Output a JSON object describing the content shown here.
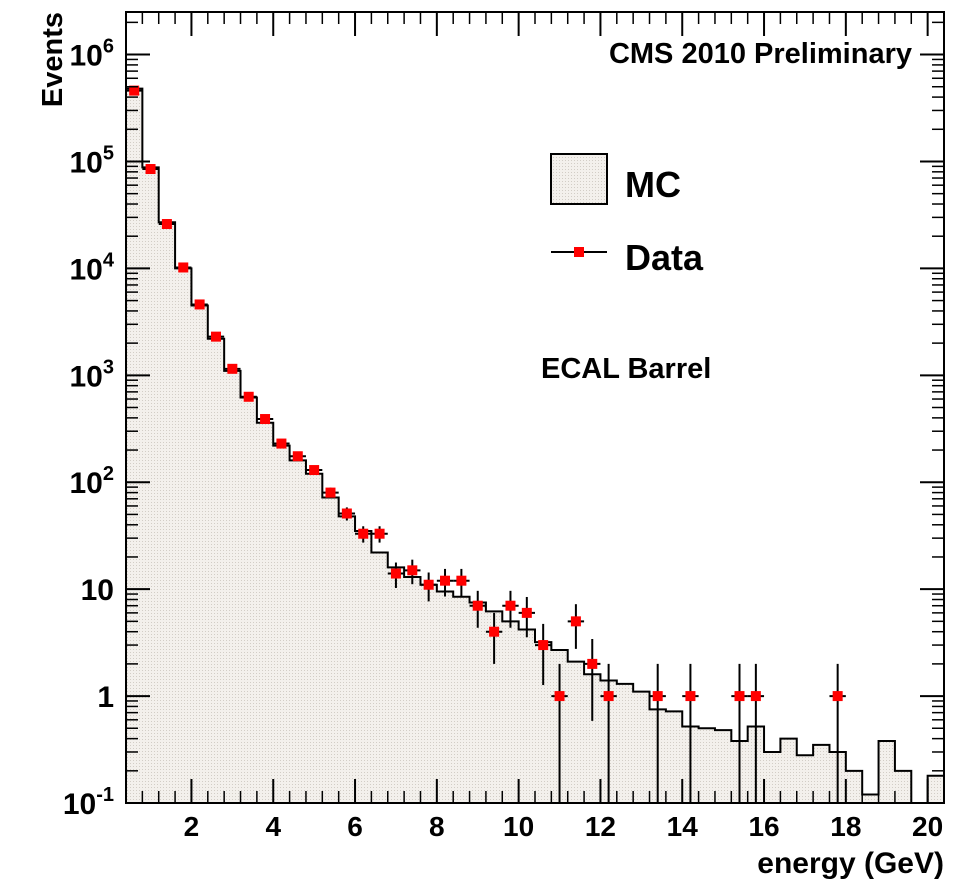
{
  "chart_data": {
    "type": "histogram",
    "title": "CMS 2010 Preliminary",
    "annotation": "ECAL Barrel",
    "xlabel": "energy (GeV)",
    "ylabel": "Events",
    "xlim": [
      0.4,
      20.4
    ],
    "ylim": [
      0.1,
      2500000
    ],
    "yscale": "log",
    "grid": false,
    "legend_position": "top-right",
    "x_ticks": [
      2,
      4,
      6,
      8,
      10,
      12,
      14,
      16,
      18,
      20
    ],
    "y_ticks": [
      {
        "value": 0.1,
        "base": "10",
        "exp": "-1"
      },
      {
        "value": 1,
        "base": "1",
        "exp": ""
      },
      {
        "value": 10,
        "base": "10",
        "exp": ""
      },
      {
        "value": 100,
        "base": "10",
        "exp": "2"
      },
      {
        "value": 1000,
        "base": "10",
        "exp": "3"
      },
      {
        "value": 10000,
        "base": "10",
        "exp": "4"
      },
      {
        "value": 100000,
        "base": "10",
        "exp": "5"
      },
      {
        "value": 1000000,
        "base": "10",
        "exp": "6"
      }
    ],
    "series": [
      {
        "name": "MC",
        "kind": "filled-histogram",
        "color": "#000000",
        "fill": "#f3f0ec",
        "bin_edges": [
          0.4,
          0.8,
          1.2,
          1.6,
          2.0,
          2.4,
          2.8,
          3.2,
          3.6,
          4.0,
          4.4,
          4.8,
          5.2,
          5.6,
          6.0,
          6.4,
          6.8,
          7.2,
          7.6,
          8.0,
          8.4,
          8.8,
          9.2,
          9.6,
          10.0,
          10.4,
          10.8,
          11.2,
          11.6,
          12.0,
          12.4,
          12.8,
          13.2,
          13.6,
          14.0,
          14.4,
          14.8,
          15.2,
          15.6,
          16.0,
          16.4,
          16.8,
          17.2,
          17.6,
          18.0,
          18.4,
          18.8,
          19.2,
          19.6,
          20.0,
          20.4
        ],
        "values": [
          480000,
          88000,
          27000,
          10000,
          4500,
          2200,
          1100,
          620,
          360,
          220,
          160,
          120,
          72,
          48,
          35,
          22,
          16,
          13,
          11,
          9.5,
          8.5,
          7.5,
          6.2,
          5.0,
          4.2,
          3.2,
          2.7,
          2.1,
          1.6,
          1.4,
          1.3,
          1.1,
          0.75,
          0.72,
          0.52,
          0.5,
          0.48,
          0.38,
          0.52,
          0.3,
          0.4,
          0.28,
          0.35,
          0.3,
          0.2,
          0.12,
          0.38,
          0.2,
          0.1,
          0.18
        ]
      },
      {
        "name": "Data",
        "kind": "points-with-errors",
        "color": "#ff0000",
        "points": [
          {
            "x": 0.6,
            "y": 460000
          },
          {
            "x": 1.0,
            "y": 85000
          },
          {
            "x": 1.4,
            "y": 26000
          },
          {
            "x": 1.8,
            "y": 10200
          },
          {
            "x": 2.2,
            "y": 4600
          },
          {
            "x": 2.6,
            "y": 2300
          },
          {
            "x": 3.0,
            "y": 1150
          },
          {
            "x": 3.4,
            "y": 630
          },
          {
            "x": 3.8,
            "y": 390
          },
          {
            "x": 4.2,
            "y": 230
          },
          {
            "x": 4.6,
            "y": 175
          },
          {
            "x": 5.0,
            "y": 130
          },
          {
            "x": 5.4,
            "y": 80
          },
          {
            "x": 5.8,
            "y": 51
          },
          {
            "x": 6.2,
            "y": 33
          },
          {
            "x": 6.6,
            "y": 33
          },
          {
            "x": 7.0,
            "y": 14
          },
          {
            "x": 7.4,
            "y": 15
          },
          {
            "x": 7.8,
            "y": 11
          },
          {
            "x": 8.2,
            "y": 12
          },
          {
            "x": 8.6,
            "y": 12
          },
          {
            "x": 9.0,
            "y": 7
          },
          {
            "x": 9.4,
            "y": 4
          },
          {
            "x": 9.8,
            "y": 7
          },
          {
            "x": 10.2,
            "y": 6
          },
          {
            "x": 10.6,
            "y": 3
          },
          {
            "x": 11.0,
            "y": 1
          },
          {
            "x": 11.4,
            "y": 5
          },
          {
            "x": 11.8,
            "y": 2
          },
          {
            "x": 12.2,
            "y": 1
          },
          {
            "x": 13.4,
            "y": 1
          },
          {
            "x": 14.2,
            "y": 1
          },
          {
            "x": 15.4,
            "y": 1
          },
          {
            "x": 15.8,
            "y": 1
          },
          {
            "x": 17.8,
            "y": 1
          }
        ]
      }
    ]
  }
}
